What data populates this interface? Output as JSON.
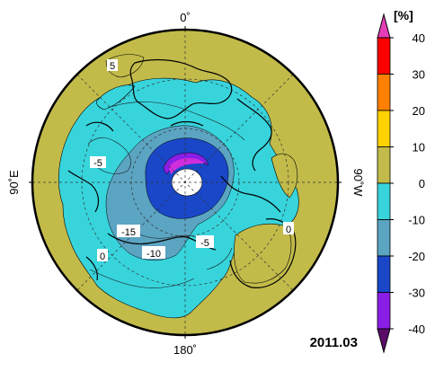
{
  "map": {
    "longitude_labels": {
      "top": "0˚",
      "bottom": "180˚",
      "left": "90˚E",
      "right": "90˚W"
    },
    "contour_labels": [
      "5",
      "-5",
      "-15",
      "-10",
      "-5",
      "0",
      "0"
    ],
    "date_label": "2011.03"
  },
  "colorbar": {
    "unit": "[%]",
    "levels": [
      40,
      30,
      20,
      10,
      0,
      -10,
      -20,
      -30,
      -40
    ],
    "tick_labels": [
      "40",
      "30",
      "20",
      "10",
      "0",
      "-10",
      "-20",
      "-30",
      "-40"
    ],
    "bins": [
      {
        "range": [
          30,
          40
        ],
        "color": "#ff0000"
      },
      {
        "range": [
          20,
          30
        ],
        "color": "#ff7f00"
      },
      {
        "range": [
          10,
          20
        ],
        "color": "#ffd200"
      },
      {
        "range": [
          0,
          10
        ],
        "color": "#c2bb4a"
      },
      {
        "range": [
          -10,
          0
        ],
        "color": "#37d4dc"
      },
      {
        "range": [
          -20,
          -10
        ],
        "color": "#5ba4c2"
      },
      {
        "range": [
          -30,
          -20
        ],
        "color": "#1947c8"
      },
      {
        "range": [
          -40,
          -30
        ],
        "color": "#8a1ee6"
      }
    ],
    "over_color": "#e63cb8",
    "under_color": "#5b0c6b"
  }
}
